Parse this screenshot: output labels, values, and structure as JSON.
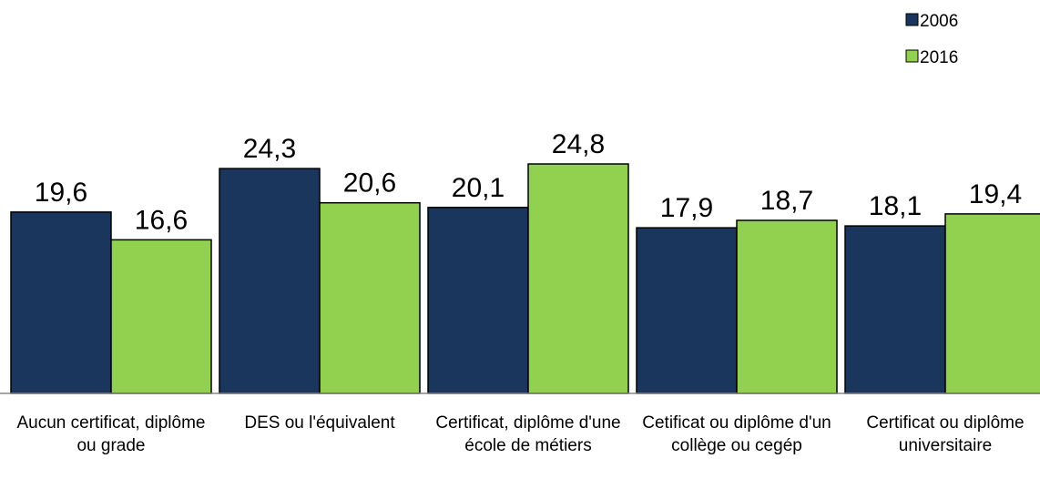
{
  "chart_data": {
    "type": "bar",
    "categories": [
      "Aucun certificat, diplôme ou grade",
      "DES ou l'équivalent",
      "Certificat, diplôme d'une école de métiers",
      "Cetificat ou diplôme d'un collège ou cegép",
      "Certificat ou diplôme universitaire"
    ],
    "series": [
      {
        "name": "2006",
        "color": "#1b365d",
        "values": [
          19.6,
          24.3,
          20.1,
          17.9,
          18.1
        ],
        "value_labels": [
          "19,6",
          "24,3",
          "20,1",
          "17,9",
          "18,1"
        ]
      },
      {
        "name": "2016",
        "color": "#92d050",
        "values": [
          16.6,
          20.6,
          24.8,
          18.7,
          19.4
        ],
        "value_labels": [
          "16,6",
          "20,6",
          "24,8",
          "18,7",
          "19,4"
        ]
      }
    ],
    "legend": "top-right"
  }
}
